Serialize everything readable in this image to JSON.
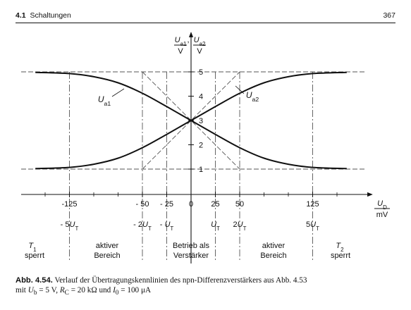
{
  "header": {
    "section_number": "4.1",
    "section_title": "Schaltungen",
    "page_number": "367"
  },
  "figure": {
    "y_axis_label": {
      "num1": "U",
      "sub1": "a1",
      "num2": "U",
      "sub2": "a2",
      "den": "V"
    },
    "x_axis_label": {
      "num": "U",
      "sub": "D",
      "den": "mV"
    },
    "y_ticks": [
      "1",
      "2",
      "3",
      "4",
      "5"
    ],
    "x_ticks": [
      "-125",
      "- 50",
      "- 25",
      "0",
      "25",
      "50",
      "125"
    ],
    "ut_labels": [
      {
        "pre": "- 5",
        "var": "U",
        "sub": "T",
        "mv": -125
      },
      {
        "pre": "- 2",
        "var": "U",
        "sub": "T",
        "mv": -50
      },
      {
        "pre": "- ",
        "var": "U",
        "sub": "T",
        "mv": -25
      },
      {
        "pre": "",
        "var": "U",
        "sub": "T",
        "mv": 25
      },
      {
        "pre": "2",
        "var": "U",
        "sub": "T",
        "mv": 50
      },
      {
        "pre": "5",
        "var": "U",
        "sub": "T",
        "mv": 125
      }
    ],
    "curve_labels": {
      "u1": "U",
      "u1_sub": "a1",
      "u2": "U",
      "u2_sub": "a2"
    },
    "regions": {
      "t1": {
        "name": "T",
        "sub": "1",
        "state": "sperrt"
      },
      "left_active": {
        "line1": "aktiver",
        "line2": "Bereich"
      },
      "amplifier": {
        "line1": "Betrieb als",
        "line2": "Verstärker"
      },
      "right_active": {
        "line1": "aktiver",
        "line2": "Bereich"
      },
      "t2": {
        "name": "T",
        "sub": "2",
        "state": "sperrt"
      }
    }
  },
  "caption": {
    "label": "Abb. 4.54.",
    "line1": "Verlauf der Übertragungskennlinien des npn-Differenzverstärkers aus Abb. 4.53",
    "line2_prefix": "mit ",
    "ub_var": "U",
    "ub_sub": "b",
    "ub_val": " = 5 V, ",
    "rc_var": "R",
    "rc_sub": "C",
    "rc_val": " = 20 kΩ und ",
    "i0_var": "I",
    "i0_sub": "0",
    "i0_val": " = 100 μA"
  },
  "chart_data": {
    "type": "line",
    "xlabel": "U_D / mV",
    "ylabel": "U_a1 / V, U_a2 / V",
    "xlim": [
      -170,
      190
    ],
    "ylim": [
      0.5,
      5.8
    ],
    "x_ticks": [
      -125,
      -50,
      -25,
      0,
      25,
      50,
      125
    ],
    "y_ticks": [
      1,
      2,
      3,
      4,
      5
    ],
    "series": [
      {
        "name": "U_a1",
        "x": [
          -160,
          -125,
          -100,
          -75,
          -50,
          -25,
          0,
          25,
          50,
          75,
          100,
          125,
          160
        ],
        "y": [
          4.98,
          4.93,
          4.8,
          4.55,
          4.12,
          3.57,
          3.0,
          2.43,
          1.88,
          1.45,
          1.2,
          1.07,
          1.02
        ]
      },
      {
        "name": "U_a2",
        "x": [
          -160,
          -125,
          -100,
          -75,
          -50,
          -25,
          0,
          25,
          50,
          75,
          100,
          125,
          160
        ],
        "y": [
          1.02,
          1.07,
          1.2,
          1.45,
          1.88,
          2.43,
          3.0,
          3.57,
          4.12,
          4.55,
          4.8,
          4.93,
          4.98
        ]
      }
    ],
    "asymptotes": {
      "lower": 1,
      "upper": 5,
      "tangent_range": [
        -50,
        50
      ]
    },
    "region_boundaries_mv": [
      -125,
      -50,
      -25,
      25,
      50,
      125
    ]
  }
}
